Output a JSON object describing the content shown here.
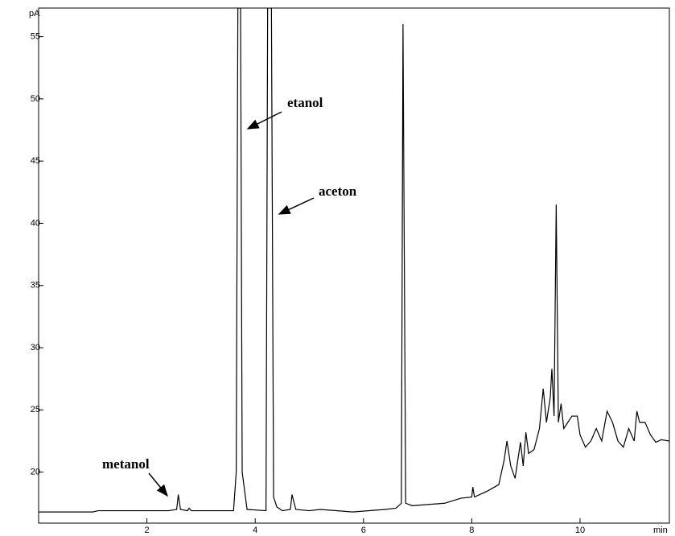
{
  "chart_data": {
    "type": "line",
    "y_label": "pA",
    "x_label": "min",
    "annotations": [
      "metanol",
      "etanol",
      "aceton"
    ],
    "color": "#000000",
    "xlim": [
      0,
      11.65
    ],
    "ylim": [
      15.9,
      57.3
    ],
    "xticks": [
      2,
      4,
      6,
      8,
      10
    ],
    "yticks": [
      20,
      25,
      30,
      35,
      40,
      45,
      50,
      55
    ],
    "x": [
      0,
      1.0,
      1.1,
      2.4,
      2.55,
      2.58,
      2.62,
      2.75,
      2.78,
      2.82,
      3.6,
      3.65,
      3.68,
      3.73,
      3.76,
      3.85,
      4.2,
      4.23,
      4.3,
      4.34,
      4.4,
      4.5,
      4.65,
      4.68,
      4.75,
      5.0,
      5.2,
      5.8,
      6.4,
      6.6,
      6.7,
      6.73,
      6.78,
      6.9,
      7.5,
      7.8,
      8.0,
      8.02,
      8.05,
      8.3,
      8.5,
      8.6,
      8.65,
      8.72,
      8.8,
      8.9,
      8.95,
      9.0,
      9.05,
      9.15,
      9.25,
      9.32,
      9.38,
      9.45,
      9.48,
      9.52,
      9.56,
      9.6,
      9.65,
      9.7,
      9.85,
      9.95,
      10.0,
      10.1,
      10.2,
      10.3,
      10.4,
      10.5,
      10.6,
      10.7,
      10.8,
      10.9,
      11.0,
      11.05,
      11.1,
      11.2,
      11.3,
      11.4,
      11.5,
      11.65
    ],
    "values": [
      16.8,
      16.8,
      16.9,
      16.9,
      17.0,
      18.2,
      17.0,
      16.9,
      17.1,
      16.9,
      16.9,
      20.0,
      57.3,
      57.3,
      20.0,
      17.0,
      16.9,
      57.3,
      57.3,
      18.0,
      17.2,
      16.9,
      17.0,
      18.2,
      17.0,
      16.9,
      17.0,
      16.8,
      17.0,
      17.1,
      17.5,
      56.0,
      17.5,
      17.3,
      17.5,
      17.9,
      18.0,
      18.8,
      18.0,
      18.5,
      19.0,
      21.0,
      22.5,
      20.5,
      19.5,
      22.4,
      20.5,
      23.2,
      21.5,
      21.8,
      23.5,
      26.7,
      24.0,
      26.0,
      28.3,
      24.5,
      41.5,
      24.0,
      25.5,
      23.5,
      24.5,
      24.5,
      23.0,
      22.0,
      22.5,
      23.5,
      22.5,
      24.9,
      24.0,
      22.5,
      22.0,
      23.5,
      22.5,
      24.9,
      24.0,
      24.0,
      23.0,
      22.4,
      22.6,
      22.5
    ]
  }
}
